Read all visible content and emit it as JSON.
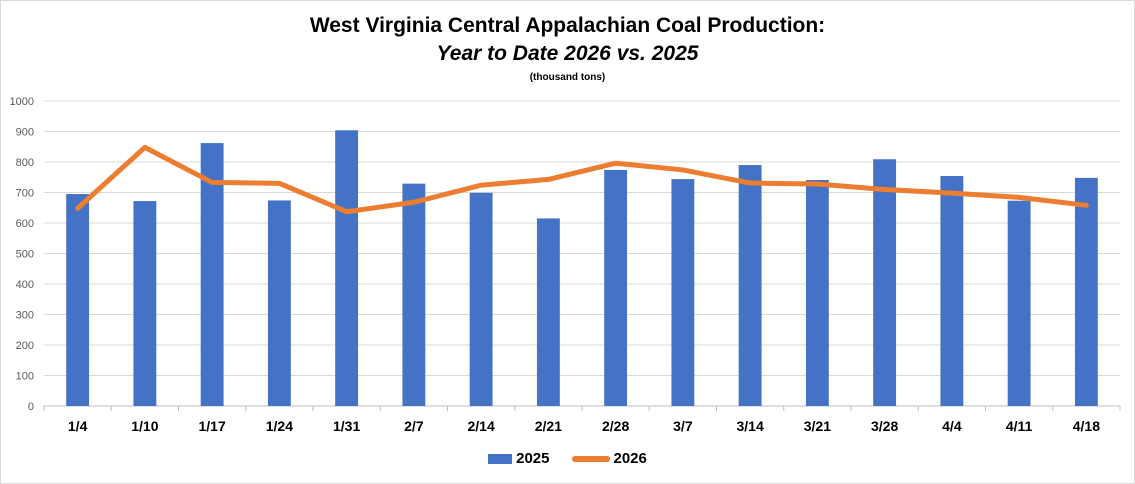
{
  "chart_data": {
    "type": "bar",
    "title": "West Virginia Central Appalachian Coal Production:",
    "subtitle": "Year to Date 2026 vs. 2025",
    "units_label": "(thousand tons)",
    "categories": [
      "1/4",
      "1/10",
      "1/17",
      "1/24",
      "1/31",
      "2/7",
      "2/14",
      "2/21",
      "2/28",
      "3/7",
      "3/14",
      "3/21",
      "3/28",
      "4/4",
      "4/11",
      "4/18"
    ],
    "series": [
      {
        "name": "2025",
        "type": "bar",
        "color": "#4472c4",
        "values": [
          695,
          672,
          862,
          674,
          904,
          729,
          699,
          615,
          774,
          744,
          790,
          741,
          809,
          754,
          673,
          748
        ]
      },
      {
        "name": "2026",
        "type": "line",
        "color": "#ed7d31",
        "values": [
          648,
          848,
          733,
          730,
          637,
          668,
          724,
          743,
          796,
          774,
          731,
          728,
          710,
          698,
          684,
          658
        ]
      }
    ],
    "ylim": [
      0,
      1000
    ],
    "yticks": [
      "0",
      "100",
      "200",
      "300",
      "400",
      "500",
      "600",
      "700",
      "800",
      "900",
      "1000"
    ],
    "grid": true,
    "legend_position": "bottom"
  }
}
